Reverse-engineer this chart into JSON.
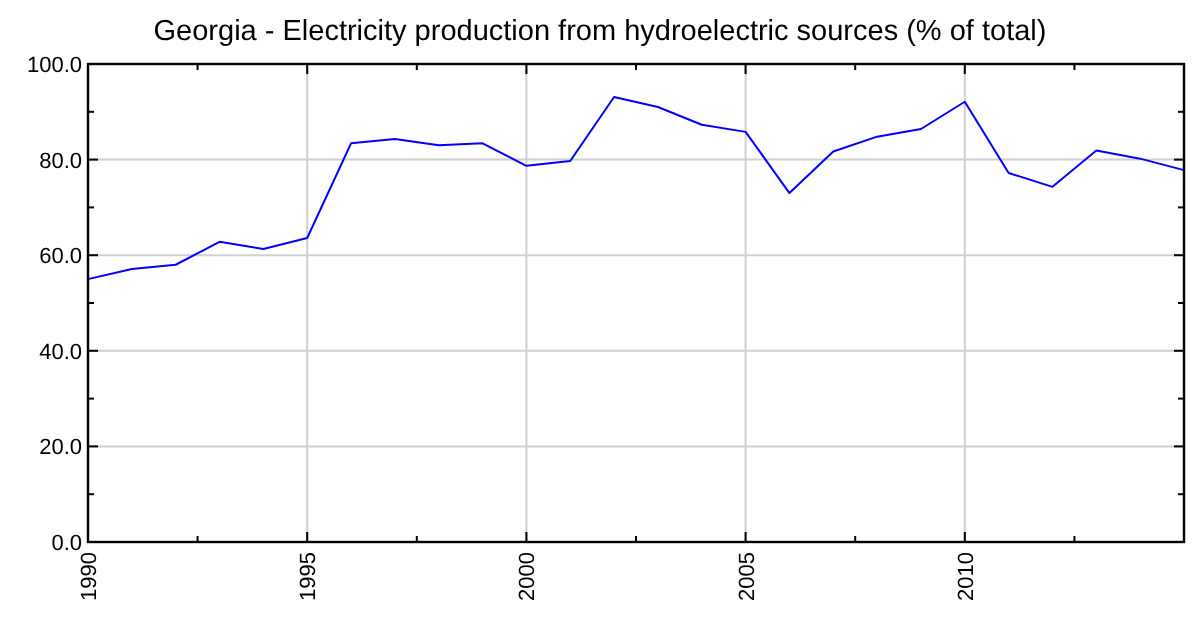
{
  "chart_data": {
    "type": "line",
    "title": "Georgia - Electricity production from hydroelectric sources (% of total)",
    "x": [
      1990,
      1991,
      1992,
      1993,
      1994,
      1995,
      1996,
      1997,
      1998,
      1999,
      2000,
      2001,
      2002,
      2003,
      2004,
      2005,
      2006,
      2007,
      2008,
      2009,
      2010,
      2011,
      2012,
      2013,
      2014,
      2015
    ],
    "series": [
      {
        "color": "#0000ff",
        "values": [
          55.0,
          57.1,
          58.0,
          62.8,
          61.3,
          63.6,
          83.4,
          84.3,
          83.0,
          83.4,
          78.7,
          79.7,
          93.1,
          91.0,
          87.3,
          85.8,
          73.0,
          81.7,
          84.8,
          86.4,
          92.1,
          77.2,
          74.3,
          81.9,
          80.2,
          77.8
        ]
      }
    ],
    "xlim": [
      1990,
      2015
    ],
    "xticks": [
      1990,
      {
        "value": 1992.5,
        "label": null
      },
      1995,
      {
        "value": 1997.5,
        "label": null
      },
      2000,
      {
        "value": 2002.5,
        "label": null
      },
      2005,
      {
        "value": 2007.5,
        "label": null
      },
      2010,
      {
        "value": 2012.5,
        "label": null
      }
    ],
    "ylim": [
      0,
      100
    ],
    "yticks": [
      {
        "value": 0,
        "label": "0.0"
      },
      {
        "value": 10,
        "label": null
      },
      {
        "value": 20,
        "label": "20.0"
      },
      {
        "value": 30,
        "label": null
      },
      {
        "value": 40,
        "label": "40.0"
      },
      {
        "value": 50,
        "label": null
      },
      {
        "value": 60,
        "label": "60.0"
      },
      {
        "value": 70,
        "label": null
      },
      {
        "value": 80,
        "label": "80.0"
      },
      {
        "value": 90,
        "label": null
      },
      {
        "value": 100,
        "label": "100.0"
      }
    ],
    "grid": true,
    "marker": "none",
    "line_style": "solid"
  }
}
